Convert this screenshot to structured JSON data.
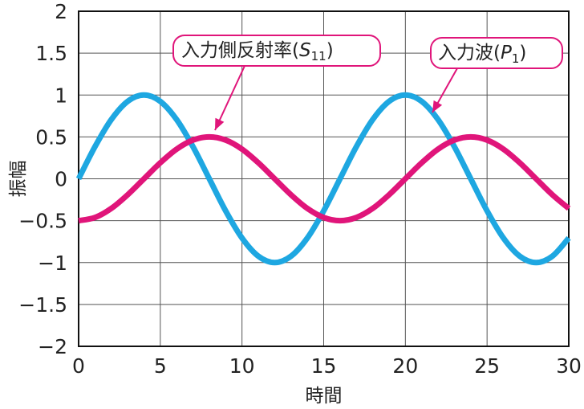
{
  "chart_data": {
    "type": "line",
    "xlabel": "時間",
    "ylabel": "振幅",
    "xlim": [
      0,
      30
    ],
    "ylim": [
      -2,
      2
    ],
    "grid": true,
    "x_ticks": [
      "0",
      "5",
      "10",
      "15",
      "20",
      "25",
      "30"
    ],
    "y_ticks": [
      "2",
      "1.5",
      "1",
      "0.5",
      "0",
      "-0.5",
      "-1",
      "-1.5",
      "-2"
    ],
    "series": [
      {
        "name": "入力波(P1)",
        "color": "#1ea7e1",
        "x": [
          0,
          1,
          2,
          3,
          4,
          5,
          6,
          7,
          8,
          9,
          10,
          11,
          12,
          13,
          14,
          15,
          16,
          17,
          18,
          19,
          20,
          21,
          22,
          23,
          24,
          25,
          26,
          27,
          28,
          29,
          30
        ],
        "y": [
          0,
          0.383,
          0.707,
          0.924,
          1,
          0.924,
          0.707,
          0.383,
          0,
          -0.383,
          -0.707,
          -0.924,
          -1,
          -0.924,
          -0.707,
          -0.383,
          0,
          0.383,
          0.707,
          0.924,
          1,
          0.924,
          0.707,
          0.383,
          0,
          -0.383,
          -0.707,
          -0.924,
          -1,
          -0.924,
          -0.707
        ]
      },
      {
        "name": "入力側反射率(S11)",
        "color": "#e0157a",
        "x": [
          0,
          1,
          2,
          3,
          4,
          5,
          6,
          7,
          8,
          9,
          10,
          11,
          12,
          13,
          14,
          15,
          16,
          17,
          18,
          19,
          20,
          21,
          22,
          23,
          24,
          25,
          26,
          27,
          28,
          29,
          30
        ],
        "y": [
          -0.5,
          -0.462,
          -0.354,
          -0.191,
          0,
          0.191,
          0.354,
          0.462,
          0.5,
          0.462,
          0.354,
          0.191,
          0,
          -0.191,
          -0.354,
          -0.462,
          -0.5,
          -0.462,
          -0.354,
          -0.191,
          0,
          0.191,
          0.354,
          0.462,
          0.5,
          0.462,
          0.354,
          0.191,
          0,
          -0.191,
          -0.354
        ]
      }
    ],
    "annotations": [
      {
        "text": "入力側反射率(S11)",
        "main": "入力側反射率(",
        "sub": "11",
        "italic": "S",
        "close": ")",
        "series": 1,
        "point_x": 8,
        "point_y": 0.5
      },
      {
        "text": "入力波(P1)",
        "main": "入力波(",
        "sub": "1",
        "italic": "P",
        "close": ")",
        "series": 0,
        "point_x": 22,
        "point_y": 0.7
      }
    ]
  }
}
